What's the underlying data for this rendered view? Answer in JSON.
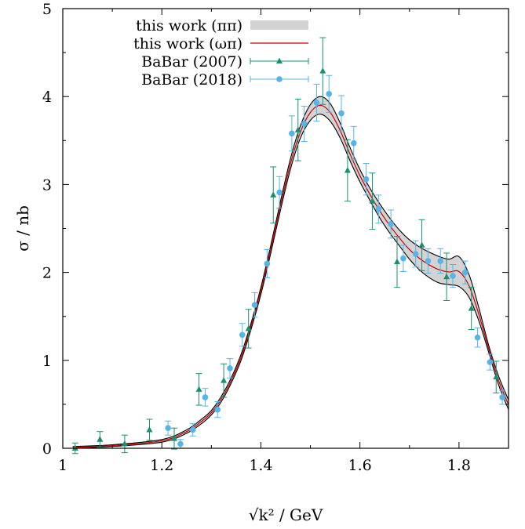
{
  "chart_data": {
    "type": "scatter",
    "xlabel": "√k² / GeV",
    "ylabel": "σ / nb",
    "xlim": [
      1.0,
      1.9
    ],
    "ylim": [
      0,
      5
    ],
    "x_ticks": [
      "1",
      "1.2",
      "1.4",
      "1.6",
      "1.8"
    ],
    "x_tick_values": [
      1.0,
      1.2,
      1.4,
      1.6,
      1.8
    ],
    "y_ticks": [
      "0",
      "1",
      "2",
      "3",
      "4",
      "5"
    ],
    "y_tick_values": [
      0,
      1,
      2,
      3,
      4,
      5
    ],
    "grid": false,
    "legend_position": "top-left",
    "legend": [
      {
        "label": "this work (ππ)",
        "kind": "band",
        "color": "#d3d3d3"
      },
      {
        "label": "this work (ωπ)",
        "kind": "line",
        "color": "#cc0000"
      },
      {
        "label": "BaBar (2007)",
        "kind": "points",
        "marker": "triangle",
        "color": "#1a9070"
      },
      {
        "label": "BaBar (2018)",
        "kind": "points",
        "marker": "circle",
        "color": "#56b4e9"
      }
    ],
    "series": [
      {
        "name": "this work (ππ)",
        "type": "band",
        "color": "#d3d3d3",
        "edge_color": "#000000",
        "x": [
          1.02,
          1.1,
          1.2,
          1.25,
          1.28,
          1.3,
          1.32,
          1.34,
          1.36,
          1.38,
          1.4,
          1.42,
          1.44,
          1.46,
          1.48,
          1.5,
          1.52,
          1.54,
          1.56,
          1.58,
          1.6,
          1.62,
          1.64,
          1.66,
          1.68,
          1.7,
          1.72,
          1.74,
          1.76,
          1.78,
          1.8,
          1.82,
          1.84,
          1.86,
          1.88,
          1.9
        ],
        "lower": [
          0.0,
          0.02,
          0.07,
          0.17,
          0.28,
          0.38,
          0.53,
          0.74,
          1.0,
          1.35,
          1.75,
          2.22,
          2.72,
          3.18,
          3.53,
          3.73,
          3.8,
          3.72,
          3.53,
          3.27,
          3.03,
          2.82,
          2.62,
          2.45,
          2.3,
          2.15,
          2.03,
          1.94,
          1.88,
          1.86,
          1.84,
          1.72,
          1.45,
          1.09,
          0.72,
          0.44
        ],
        "upper": [
          0.02,
          0.04,
          0.1,
          0.21,
          0.33,
          0.43,
          0.59,
          0.8,
          1.07,
          1.42,
          1.83,
          2.31,
          2.82,
          3.3,
          3.67,
          3.91,
          4.0,
          3.92,
          3.7,
          3.42,
          3.17,
          2.96,
          2.78,
          2.62,
          2.48,
          2.37,
          2.29,
          2.23,
          2.18,
          2.15,
          2.18,
          1.98,
          1.6,
          1.17,
          0.82,
          0.55
        ]
      },
      {
        "name": "this work (ωπ)",
        "type": "line",
        "color": "#cc0000",
        "x": [
          1.02,
          1.1,
          1.2,
          1.25,
          1.28,
          1.3,
          1.32,
          1.34,
          1.36,
          1.38,
          1.4,
          1.42,
          1.44,
          1.46,
          1.48,
          1.5,
          1.52,
          1.54,
          1.56,
          1.58,
          1.6,
          1.62,
          1.64,
          1.66,
          1.68,
          1.7,
          1.72,
          1.74,
          1.76,
          1.78,
          1.8,
          1.82,
          1.84,
          1.86,
          1.88,
          1.9
        ],
        "y": [
          0.01,
          0.03,
          0.085,
          0.19,
          0.305,
          0.405,
          0.56,
          0.77,
          1.035,
          1.385,
          1.79,
          2.265,
          2.77,
          3.24,
          3.6,
          3.82,
          3.9,
          3.82,
          3.615,
          3.345,
          3.1,
          2.89,
          2.7,
          2.535,
          2.39,
          2.26,
          2.16,
          2.085,
          2.03,
          2.005,
          2.01,
          1.85,
          1.525,
          1.13,
          0.77,
          0.495
        ]
      },
      {
        "name": "BaBar (2007)",
        "type": "points",
        "marker": "triangle",
        "color": "#1a9070",
        "x": [
          1.025,
          1.075,
          1.125,
          1.175,
          1.225,
          1.275,
          1.325,
          1.375,
          1.425,
          1.475,
          1.525,
          1.575,
          1.625,
          1.675,
          1.725,
          1.775,
          1.825,
          1.875
        ],
        "y": [
          0.0,
          0.1,
          0.05,
          0.21,
          0.11,
          0.67,
          0.77,
          1.36,
          2.88,
          3.62,
          4.29,
          3.16,
          2.81,
          2.12,
          2.31,
          1.95,
          1.59,
          0.81
        ],
        "yerr": [
          0.06,
          0.09,
          0.1,
          0.12,
          0.12,
          0.18,
          0.19,
          0.22,
          0.32,
          0.35,
          0.38,
          0.35,
          0.32,
          0.29,
          0.29,
          0.27,
          0.24,
          0.18
        ]
      },
      {
        "name": "BaBar (2018)",
        "type": "points",
        "marker": "circle",
        "color": "#56b4e9",
        "x": [
          1.2125,
          1.2375,
          1.2625,
          1.2875,
          1.3125,
          1.3375,
          1.3625,
          1.3875,
          1.4125,
          1.4375,
          1.4625,
          1.4875,
          1.5125,
          1.5375,
          1.5625,
          1.5875,
          1.6125,
          1.6375,
          1.6625,
          1.6875,
          1.7125,
          1.7375,
          1.7625,
          1.7875,
          1.8125,
          1.8375,
          1.8625,
          1.8875
        ],
        "y": [
          0.23,
          0.05,
          0.21,
          0.58,
          0.44,
          0.91,
          1.29,
          1.63,
          2.1,
          2.91,
          3.58,
          3.69,
          3.93,
          4.03,
          3.81,
          3.47,
          3.06,
          2.72,
          2.55,
          2.16,
          2.21,
          2.13,
          2.13,
          1.96,
          2.0,
          1.26,
          0.98,
          0.58
        ],
        "yerr": [
          0.08,
          0.05,
          0.07,
          0.1,
          0.09,
          0.11,
          0.13,
          0.14,
          0.16,
          0.18,
          0.2,
          0.2,
          0.21,
          0.21,
          0.2,
          0.19,
          0.18,
          0.16,
          0.16,
          0.15,
          0.15,
          0.14,
          0.14,
          0.13,
          0.13,
          0.11,
          0.09,
          0.08
        ]
      }
    ]
  }
}
